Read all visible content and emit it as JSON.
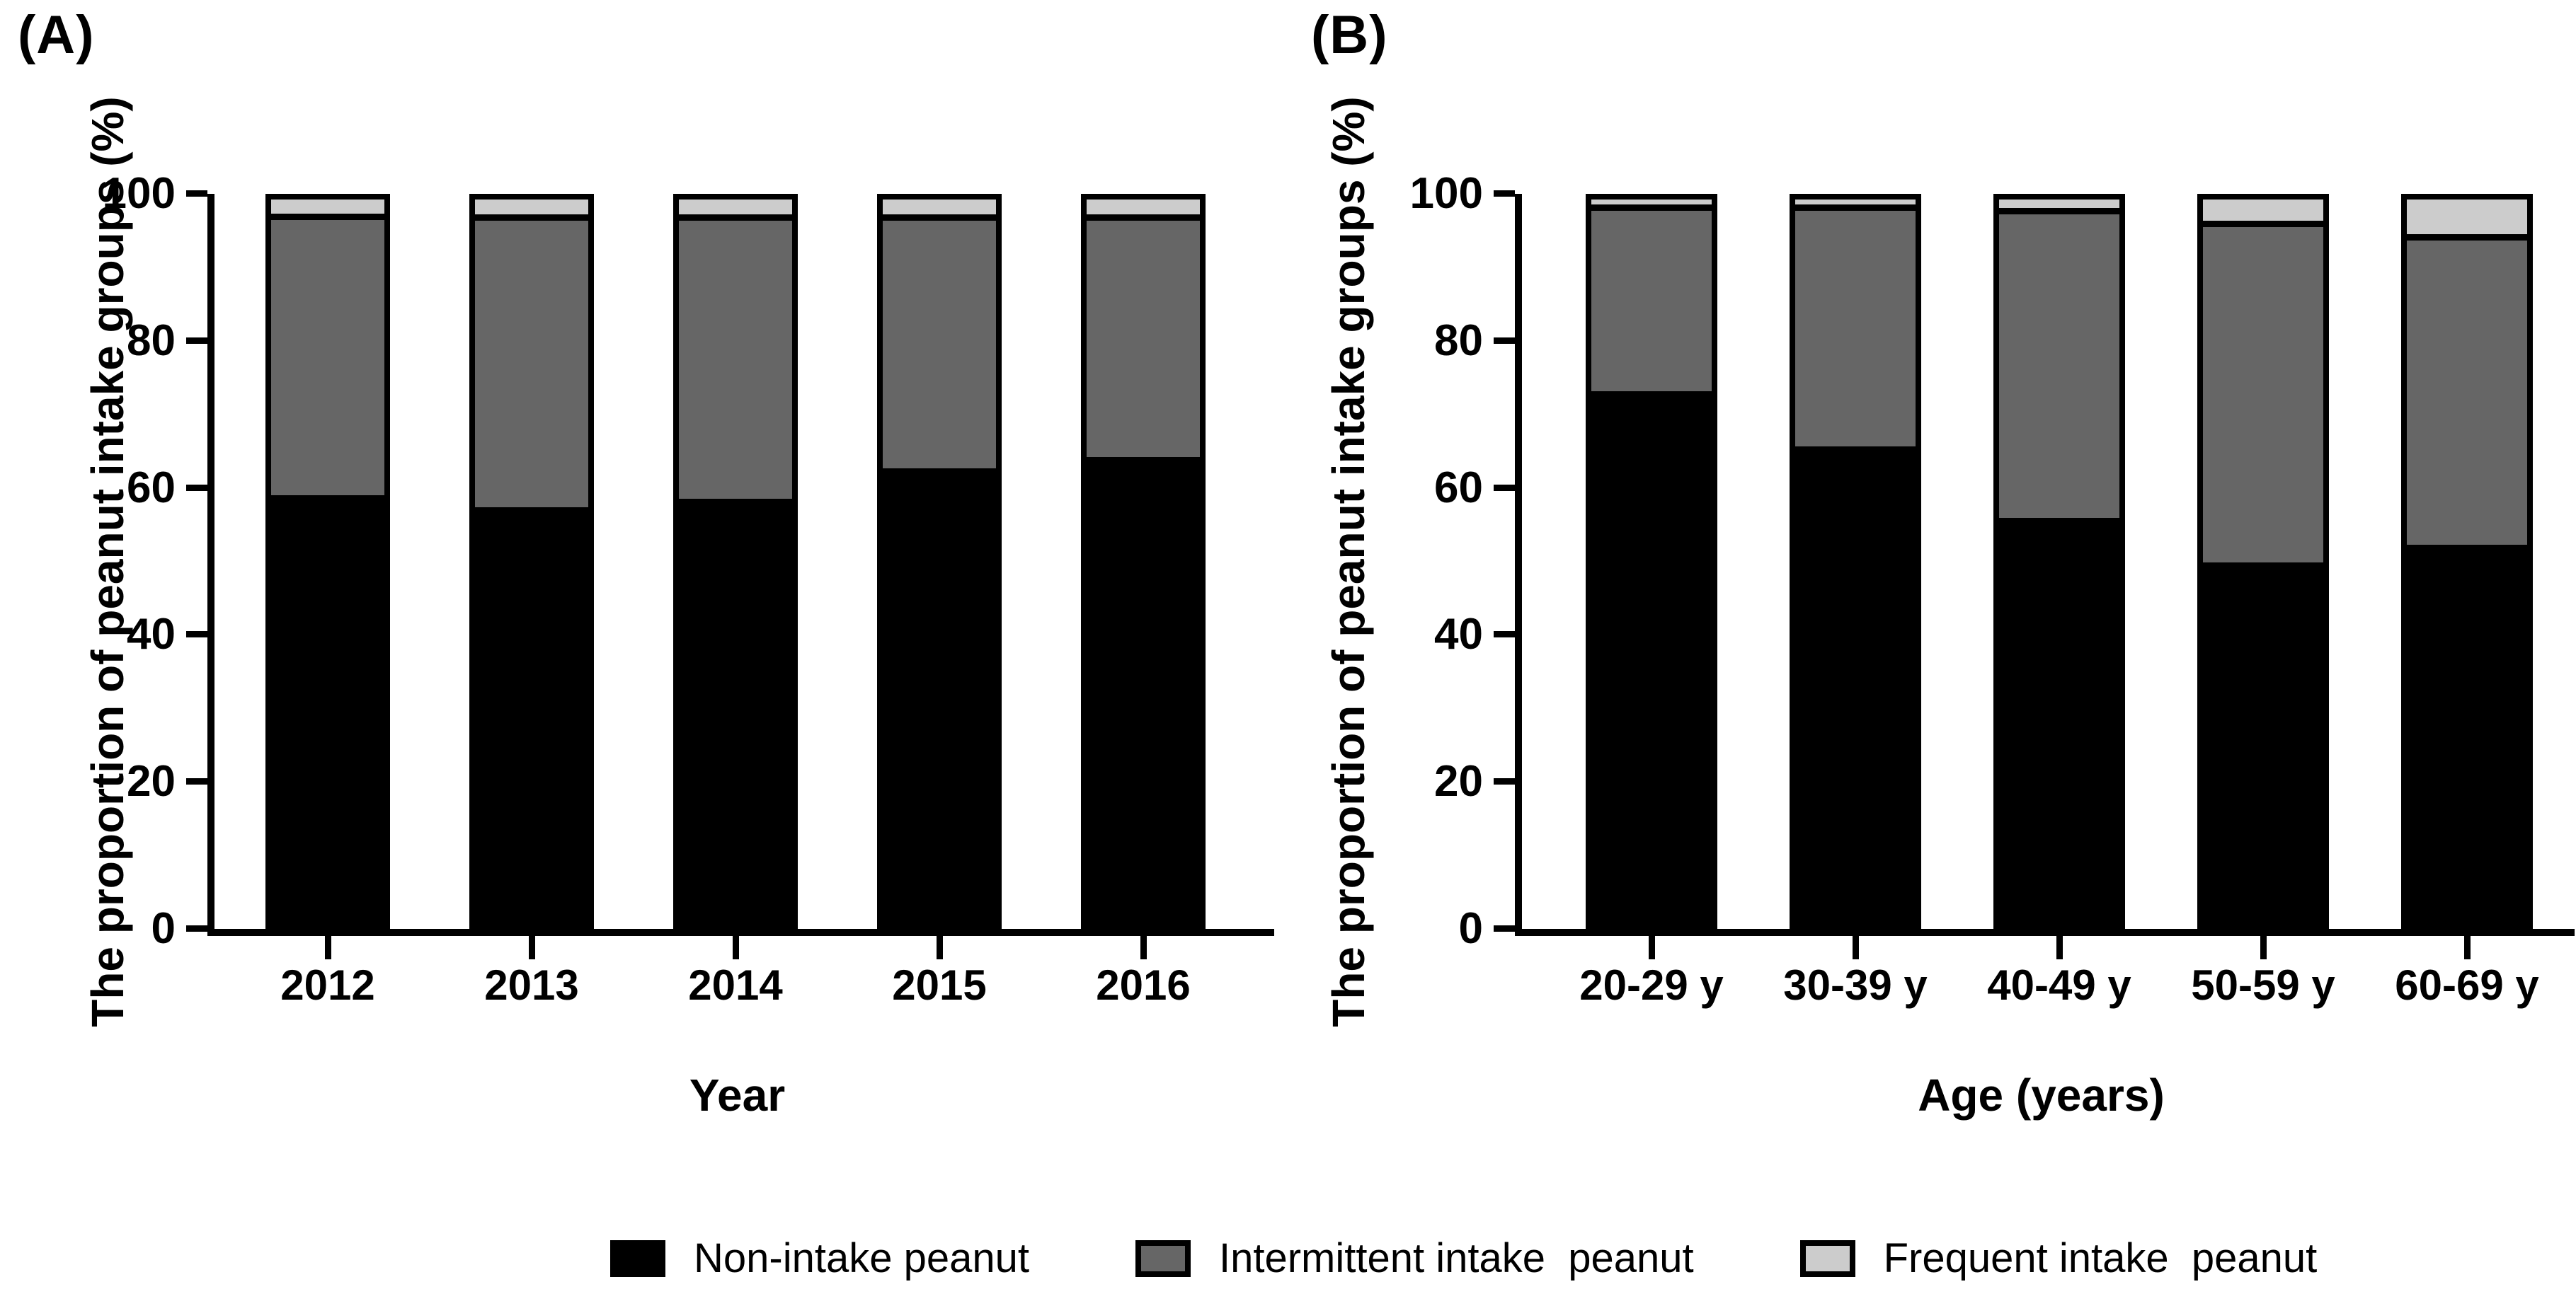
{
  "chart_data": [
    {
      "type": "bar",
      "stacked": true,
      "panel_label": "(A)",
      "xlabel": "Year",
      "ylabel": "The proportion of peanut intake groups (%)",
      "ylim": [
        0,
        100
      ],
      "yticks": [
        0,
        20,
        40,
        60,
        80,
        100
      ],
      "grid": false,
      "categories": [
        "2012",
        "2013",
        "2014",
        "2015",
        "2016"
      ],
      "series": [
        {
          "name": "Non-intake peanut",
          "color": "#000000",
          "values": [
            59.7,
            58.0,
            59.2,
            63.4,
            65.0
          ]
        },
        {
          "name": "Intermittent intake peanut",
          "color": "#666666",
          "values": [
            38.3,
            39.9,
            38.7,
            34.5,
            32.9
          ]
        },
        {
          "name": "Frequent intake peanut",
          "color": "#cccccc",
          "values": [
            2.0,
            2.1,
            2.1,
            2.1,
            2.1
          ]
        }
      ]
    },
    {
      "type": "bar",
      "stacked": true,
      "panel_label": "(B)",
      "xlabel": "Age (years)",
      "ylabel": "The proportion of peanut intake groups (%)",
      "ylim": [
        0,
        100
      ],
      "yticks": [
        0,
        20,
        40,
        60,
        80,
        100
      ],
      "grid": false,
      "categories": [
        "20-29 y",
        "30-39 y",
        "40-49 y",
        "50-59 y",
        "60-69 y"
      ],
      "series": [
        {
          "name": "Non-intake peanut",
          "color": "#000000",
          "values": [
            74.2,
            66.5,
            56.5,
            50.3,
            52.8
          ]
        },
        {
          "name": "Intermittent intake peanut",
          "color": "#666666",
          "values": [
            25.1,
            32.8,
            42.3,
            46.7,
            42.4
          ]
        },
        {
          "name": "Frequent intake peanut",
          "color": "#cccccc",
          "values": [
            0.7,
            0.7,
            1.2,
            3.0,
            4.8
          ]
        }
      ]
    }
  ],
  "legend": {
    "items": [
      {
        "label": "Non-intake peanut",
        "color": "#000000"
      },
      {
        "label": "Intermittent intake  peanut",
        "color": "#666666"
      },
      {
        "label": "Frequent intake  peanut",
        "color": "#cccccc"
      }
    ]
  },
  "colors": {
    "background": "#ffffff",
    "axis": "#000000",
    "non_intake": "#000000",
    "intermittent_intake": "#666666",
    "frequent_intake": "#cccccc"
  }
}
